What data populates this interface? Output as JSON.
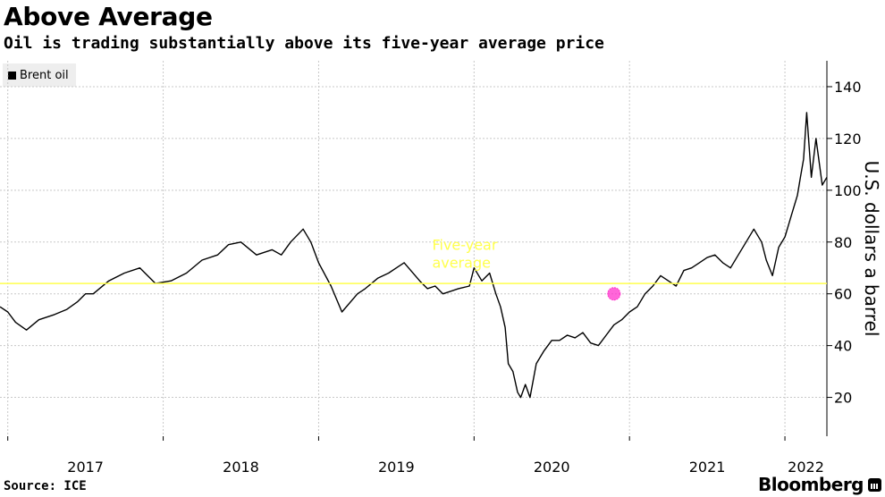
{
  "chart_data": {
    "type": "line",
    "title": "Above Average",
    "subtitle": "Oil is trading substantially above its five-year average price",
    "ylabel": "U.S. dollars a barrel",
    "ylim": [
      5,
      150
    ],
    "yticks": [
      20,
      40,
      60,
      80,
      100,
      120,
      140
    ],
    "xlim": [
      2016.95,
      2022.27
    ],
    "xticks": [
      "2017",
      "2018",
      "2019",
      "2020",
      "2021",
      "2022"
    ],
    "grid": true,
    "legend_position": "top-left",
    "series": [
      {
        "name": "Brent oil",
        "color": "#000000",
        "x": [
          2016.95,
          2017.0,
          2017.05,
          2017.12,
          2017.2,
          2017.3,
          2017.38,
          2017.45,
          2017.5,
          2017.55,
          2017.65,
          2017.75,
          2017.85,
          2017.95,
          2018.05,
          2018.15,
          2018.25,
          2018.35,
          2018.42,
          2018.5,
          2018.6,
          2018.7,
          2018.76,
          2018.82,
          2018.9,
          2018.95,
          2019.0,
          2019.08,
          2019.15,
          2019.25,
          2019.3,
          2019.38,
          2019.45,
          2019.5,
          2019.55,
          2019.65,
          2019.7,
          2019.75,
          2019.8,
          2019.9,
          2019.97,
          2020.0,
          2020.05,
          2020.1,
          2020.14,
          2020.17,
          2020.2,
          2020.22,
          2020.25,
          2020.28,
          2020.3,
          2020.33,
          2020.36,
          2020.4,
          2020.45,
          2020.5,
          2020.55,
          2020.6,
          2020.65,
          2020.7,
          2020.75,
          2020.8,
          2020.85,
          2020.9,
          2020.95,
          2021.0,
          2021.05,
          2021.1,
          2021.15,
          2021.2,
          2021.25,
          2021.3,
          2021.35,
          2021.4,
          2021.45,
          2021.5,
          2021.55,
          2021.6,
          2021.65,
          2021.7,
          2021.75,
          2021.8,
          2021.85,
          2021.88,
          2021.92,
          2021.96,
          2022.0,
          2022.04,
          2022.08,
          2022.1,
          2022.12,
          2022.14,
          2022.17,
          2022.2,
          2022.24,
          2022.27
        ],
        "y": [
          55,
          53,
          49,
          46,
          50,
          52,
          54,
          57,
          60,
          60,
          65,
          68,
          70,
          64,
          65,
          68,
          73,
          75,
          79,
          80,
          75,
          77,
          75,
          80,
          85,
          80,
          72,
          63,
          53,
          60,
          62,
          66,
          68,
          70,
          72,
          65,
          62,
          63,
          60,
          62,
          63,
          70,
          65,
          68,
          60,
          55,
          47,
          33,
          30,
          22,
          20,
          25,
          20,
          33,
          38,
          42,
          42,
          44,
          43,
          45,
          41,
          40,
          44,
          48,
          50,
          53,
          55,
          60,
          63,
          67,
          65,
          63,
          69,
          70,
          72,
          74,
          75,
          72,
          70,
          75,
          80,
          85,
          80,
          73,
          67,
          78,
          82,
          90,
          98,
          105,
          112,
          130,
          105,
          120,
          102,
          105
        ]
      },
      {
        "name": "Five-year average",
        "color": "#ffff4d",
        "x": [
          2016.95,
          2022.27
        ],
        "y": [
          64,
          64
        ]
      }
    ],
    "annotations": [
      {
        "text": "Five-year\naverage",
        "x": 2019.88,
        "y": 77,
        "color": "#ffff4d"
      },
      {
        "text": "",
        "marker": "crossing",
        "x": 2020.9,
        "y": 60,
        "color": "#ff33cc"
      }
    ]
  },
  "legend": {
    "label": "Brent oil"
  },
  "footer": {
    "source": "Source: ICE",
    "brand": "Bloomberg"
  }
}
